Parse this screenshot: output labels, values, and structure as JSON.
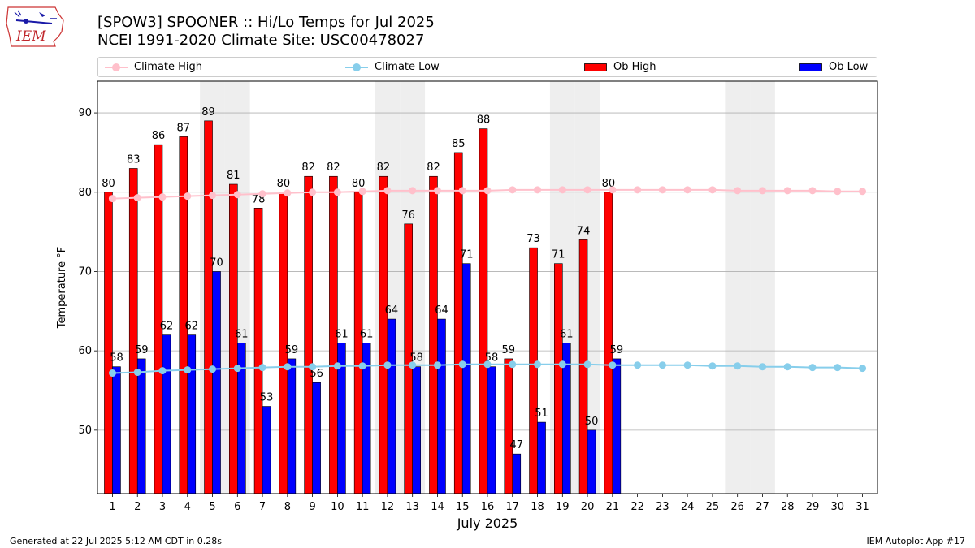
{
  "title_line1": "[SPOW3] SPOONER :: Hi/Lo Temps for Jul 2025",
  "title_line2": "NCEI 1991-2020 Climate Site: USC00478027",
  "footer_left": "Generated at 22 Jul 2025 5:12 AM CDT in 0.28s",
  "footer_right": "IEM Autoplot App #17",
  "logo_text": "IEM",
  "legend": {
    "climate_high": "Climate High",
    "climate_low": "Climate Low",
    "ob_high": "Ob High",
    "ob_low": "Ob Low"
  },
  "colors": {
    "ob_high": "#ff0000",
    "ob_low": "#0000ff",
    "climate_high": "#ffc0cb",
    "climate_low": "#87ceeb",
    "weekend_shade": "#eeeeee",
    "grid": "#b0b0b0"
  },
  "chart_data": {
    "type": "bar",
    "xlabel": "July 2025",
    "ylabel": "Temperature °F",
    "ylim": [
      42,
      94
    ],
    "yticks": [
      50,
      60,
      70,
      80,
      90
    ],
    "grid": "horizontal",
    "legend_position": "top",
    "categories": [
      "1",
      "2",
      "3",
      "4",
      "5",
      "6",
      "7",
      "8",
      "9",
      "10",
      "11",
      "12",
      "13",
      "14",
      "15",
      "16",
      "17",
      "18",
      "19",
      "20",
      "21",
      "22",
      "23",
      "24",
      "25",
      "26",
      "27",
      "28",
      "29",
      "30",
      "31"
    ],
    "weekend_days": [
      5,
      6,
      12,
      13,
      19,
      20,
      26,
      27
    ],
    "series": [
      {
        "name": "Ob High",
        "kind": "bar",
        "values": [
          80,
          83,
          86,
          87,
          89,
          81,
          78,
          80,
          82,
          82,
          80,
          82,
          76,
          82,
          85,
          88,
          59,
          73,
          71,
          74,
          80,
          null,
          null,
          null,
          null,
          null,
          null,
          null,
          null,
          null,
          null
        ]
      },
      {
        "name": "Ob Low",
        "kind": "bar",
        "values": [
          58,
          59,
          62,
          62,
          70,
          61,
          53,
          59,
          56,
          61,
          61,
          64,
          58,
          64,
          71,
          58,
          47,
          51,
          61,
          50,
          59,
          null,
          null,
          null,
          null,
          null,
          null,
          null,
          null,
          null,
          null
        ]
      },
      {
        "name": "Climate High",
        "kind": "line",
        "values": [
          79.2,
          79.3,
          79.4,
          79.5,
          79.6,
          79.7,
          79.8,
          79.9,
          80.0,
          80.0,
          80.1,
          80.2,
          80.2,
          80.2,
          80.2,
          80.2,
          80.3,
          80.3,
          80.3,
          80.3,
          80.3,
          80.3,
          80.3,
          80.3,
          80.3,
          80.2,
          80.2,
          80.2,
          80.2,
          80.1,
          80.1
        ]
      },
      {
        "name": "Climate Low",
        "kind": "line",
        "values": [
          57.2,
          57.3,
          57.5,
          57.6,
          57.7,
          57.8,
          57.9,
          58.0,
          58.0,
          58.1,
          58.1,
          58.2,
          58.2,
          58.2,
          58.3,
          58.3,
          58.3,
          58.3,
          58.3,
          58.3,
          58.2,
          58.2,
          58.2,
          58.2,
          58.1,
          58.1,
          58.0,
          58.0,
          57.9,
          57.9,
          57.8
        ]
      }
    ]
  }
}
